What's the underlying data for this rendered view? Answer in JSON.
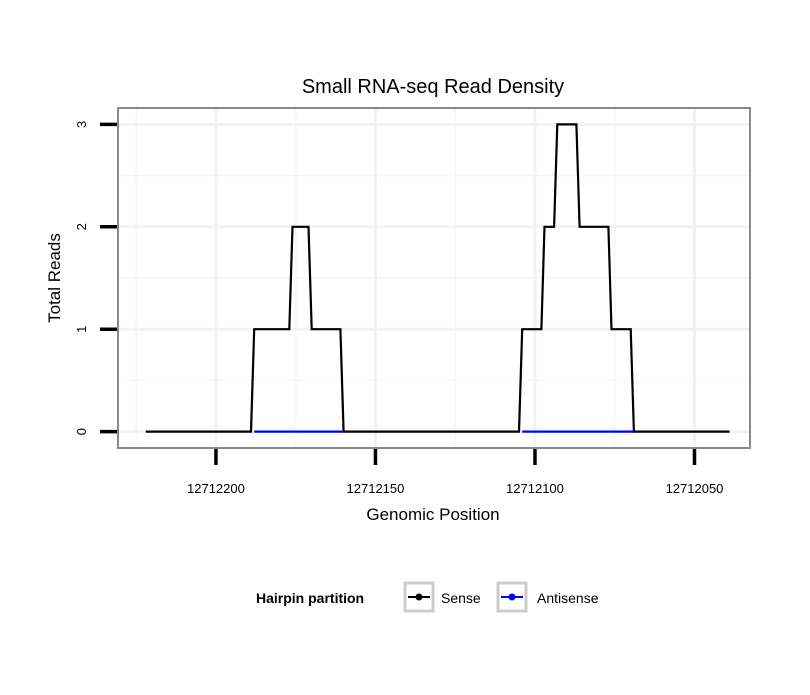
{
  "chart_data": {
    "type": "line",
    "title": "Small RNA-seq Read Density",
    "xlabel": "Genomic Position",
    "ylabel": "Total Reads",
    "xlim": [
      12712230.7,
      12712032.6
    ],
    "x_reversed": true,
    "ylim": [
      -0.16,
      3.16
    ],
    "x_ticks": [
      12712200,
      12712150,
      12712100,
      12712050
    ],
    "x_tick_labels": [
      "12712200",
      "12712150",
      "12712100",
      "12712050"
    ],
    "y_ticks": [
      0,
      1,
      2,
      3
    ],
    "y_tick_labels": [
      "0",
      "1",
      "2",
      "3"
    ],
    "grid": true,
    "legend": {
      "title": "Hairpin partition",
      "placement": "bottom",
      "entries": [
        "Sense",
        "Antisense"
      ]
    },
    "series": [
      {
        "name": "Sense",
        "color": "#000000",
        "segments": [
          [
            [
              12712222,
              0
            ],
            [
              12712189,
              0
            ],
            [
              12712188,
              1
            ],
            [
              12712177,
              1
            ],
            [
              12712176,
              2
            ],
            [
              12712171,
              2
            ],
            [
              12712170,
              1
            ],
            [
              12712161,
              1
            ],
            [
              12712160,
              0
            ],
            [
              12712105,
              0
            ],
            [
              12712104,
              1
            ],
            [
              12712098,
              1
            ],
            [
              12712097,
              2
            ],
            [
              12712094,
              2
            ],
            [
              12712093,
              3
            ],
            [
              12712087,
              3
            ],
            [
              12712086,
              2
            ],
            [
              12712077,
              2
            ],
            [
              12712076,
              1
            ],
            [
              12712070,
              1
            ],
            [
              12712069,
              0
            ],
            [
              12712039,
              0
            ]
          ]
        ]
      },
      {
        "name": "Antisense",
        "color": "#0000ff",
        "segments": [
          [
            [
              12712188,
              0
            ],
            [
              12712160,
              0
            ]
          ],
          [
            [
              12712104,
              0
            ],
            [
              12712069,
              0
            ]
          ]
        ]
      }
    ]
  }
}
